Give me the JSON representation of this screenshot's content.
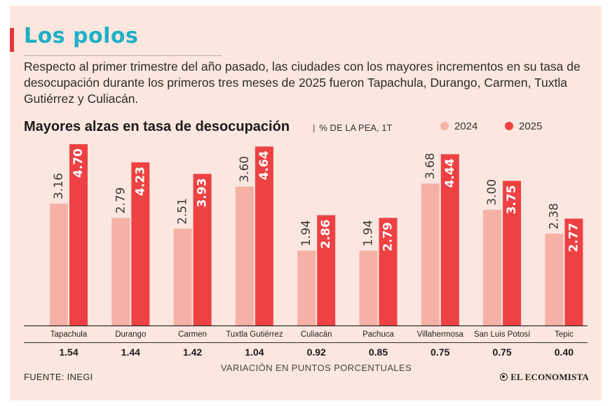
{
  "header": {
    "title": "Los polos",
    "intro": "Respecto al primer trimestre del año pasado, las ciudades con los mayores incrementos en su tasa de desocupación durante los primeros tres meses de 2025 fueron Tapachula, Durango, Carmen, Tuxtla Gutiérrez y Culiacán."
  },
  "colors": {
    "accent": "#e8373b",
    "title": "#1fb0c7",
    "series_2024": "#f6b1a6",
    "series_2025": "#ee4143",
    "background": "#fbe7df"
  },
  "footer": {
    "source": "FUENTE: INEGI",
    "brand": "EL ECONOMISTA"
  },
  "chart_data": {
    "type": "bar",
    "title": "Mayores alzas en tasa de desocupación",
    "unit": "% DE LA PEA, 1T",
    "categories": [
      "Tapachula",
      "Durango",
      "Carmen",
      "Tuxtla Gutiérrez",
      "Culiacán",
      "Pachuca",
      "Villahermosa",
      "San Luis Potosí",
      "Tepic"
    ],
    "series": [
      {
        "name": "2024",
        "values": [
          3.16,
          2.79,
          2.51,
          3.6,
          1.94,
          1.94,
          3.68,
          3.0,
          2.38
        ],
        "labels": [
          "3.16",
          "2.79",
          "2.51",
          "3.60",
          "1.94",
          "1.94",
          "3.68",
          "3.00",
          "2.38"
        ]
      },
      {
        "name": "2025",
        "values": [
          4.7,
          4.23,
          3.93,
          4.64,
          2.86,
          2.79,
          4.44,
          3.75,
          2.77
        ],
        "labels": [
          "4.70",
          "4.23",
          "3.93",
          "4.64",
          "2.86",
          "2.79",
          "4.44",
          "3.75",
          "2.77"
        ]
      }
    ],
    "variation": {
      "label": "VARIACIÓN EN PUNTOS PORCENTUALES",
      "values": [
        "1.54",
        "1.44",
        "1.42",
        "1.04",
        "0.92",
        "0.85",
        "0.75",
        "0.75",
        "0.40"
      ]
    },
    "ylim": [
      0,
      4.7
    ],
    "grid": false,
    "legend_position": "top-right"
  }
}
